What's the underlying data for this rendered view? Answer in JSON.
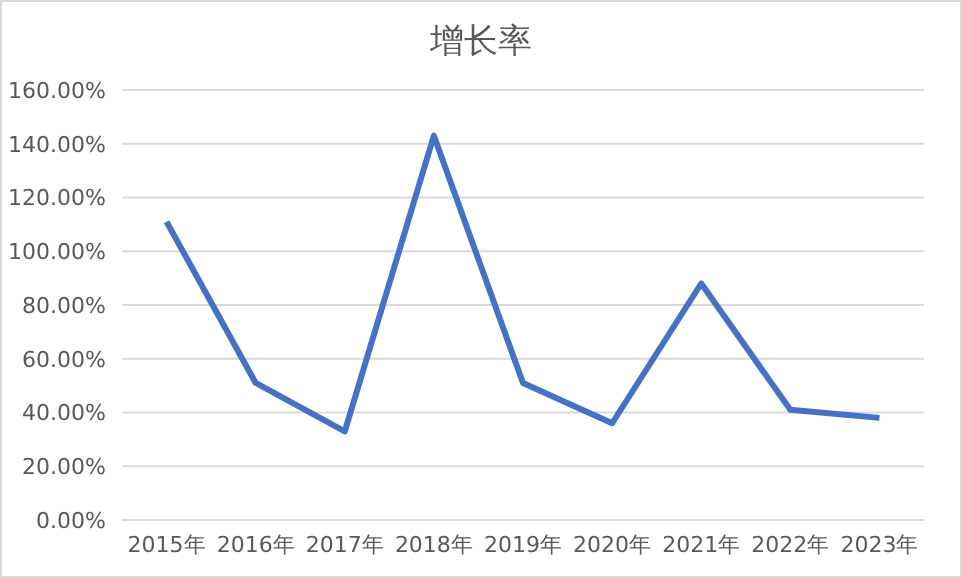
{
  "chart_data": {
    "type": "line",
    "title": "增长率",
    "categories": [
      "2015年",
      "2016年",
      "2017年",
      "2018年",
      "2019年",
      "2020年",
      "2021年",
      "2022年",
      "2023年"
    ],
    "series": [
      {
        "color": "#4472c4",
        "values": [
          111,
          51,
          33,
          143,
          51,
          36,
          88,
          41,
          38
        ]
      }
    ],
    "ylim": [
      0,
      160
    ],
    "yticks": [
      {
        "value": 0,
        "label": "0.00%"
      },
      {
        "value": 20,
        "label": "20.00%"
      },
      {
        "value": 40,
        "label": "40.00%"
      },
      {
        "value": 60,
        "label": "60.00%"
      },
      {
        "value": 80,
        "label": "80.00%"
      },
      {
        "value": 100,
        "label": "100.00%"
      },
      {
        "value": 120,
        "label": "120.00%"
      },
      {
        "value": 140,
        "label": "140.00%"
      },
      {
        "value": 160,
        "label": "160.00%"
      }
    ],
    "grid": "y",
    "legend": false,
    "marker": "none",
    "line_style": "solid"
  }
}
